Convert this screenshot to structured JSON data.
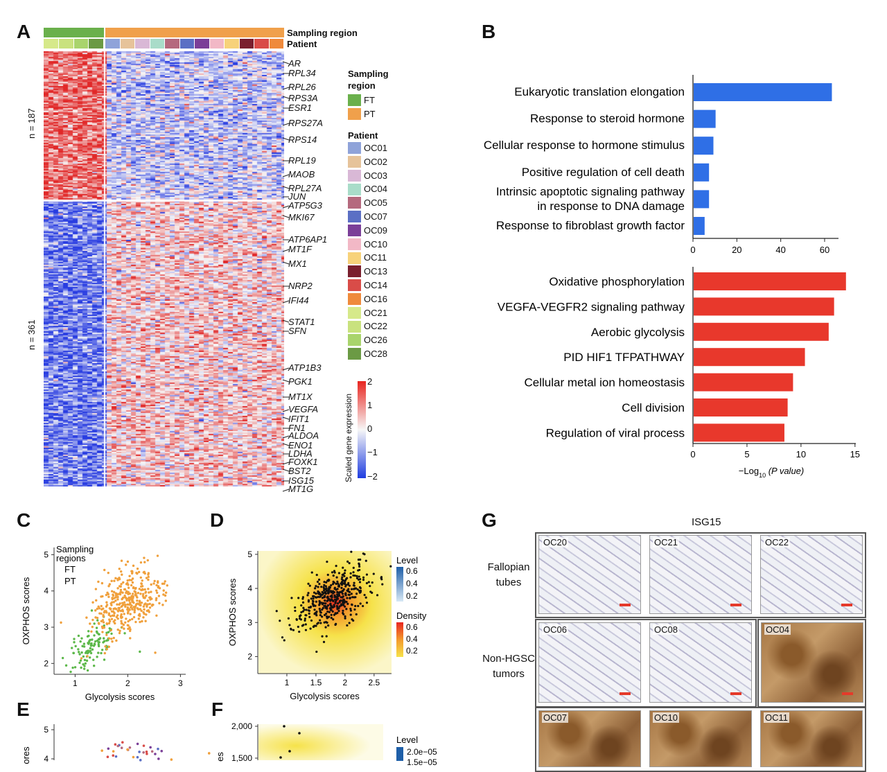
{
  "panels": {
    "A": "A",
    "B": "B",
    "C": "C",
    "D": "D",
    "E": "E",
    "F": "F",
    "G": "G"
  },
  "panelA": {
    "track_sampling": "Sampling region",
    "track_patient": "Patient",
    "n_top": "n = 187",
    "n_bottom": "n = 361",
    "genes_top": [
      "AR",
      "RPL34",
      "RPL26",
      "RPS3A",
      "ESR1",
      "RPS27A",
      "RPS14",
      "RPL19",
      "MAOB",
      "RPL27A",
      "JUN"
    ],
    "genes_bottom": [
      "ATP5G3",
      "MKI67",
      "ATP6AP1",
      "MT1F",
      "MX1",
      "NRP2",
      "IFI44",
      "STAT1",
      "SFN",
      "ATP1B3",
      "PGK1",
      "MT1X",
      "VEGFA",
      "IFIT1",
      "FN1",
      "ALDOA",
      "ENO1",
      "LDHA",
      "FOXK1",
      "BST2",
      "ISG15",
      "MT1G"
    ],
    "legend_sampling_title": "Sampling region",
    "legend_sampling": [
      {
        "label": "FT",
        "color": "#6ab04c"
      },
      {
        "label": "PT",
        "color": "#f0a04b"
      }
    ],
    "legend_patient_title": "Patient",
    "patients": [
      {
        "label": "OC01",
        "color": "#8fa3d9"
      },
      {
        "label": "OC02",
        "color": "#e6c39a"
      },
      {
        "label": "OC03",
        "color": "#d9b8d6"
      },
      {
        "label": "OC04",
        "color": "#a9dcc9"
      },
      {
        "label": "OC05",
        "color": "#b5697e"
      },
      {
        "label": "OC07",
        "color": "#5b6fc4"
      },
      {
        "label": "OC09",
        "color": "#7b3f98"
      },
      {
        "label": "OC10",
        "color": "#f2b8c6"
      },
      {
        "label": "OC11",
        "color": "#f7d27a"
      },
      {
        "label": "OC13",
        "color": "#7a1f2e"
      },
      {
        "label": "OC14",
        "color": "#d94c48"
      },
      {
        "label": "OC16",
        "color": "#ef8a3c"
      },
      {
        "label": "OC21",
        "color": "#d6e98a"
      },
      {
        "label": "OC22",
        "color": "#c9e27e"
      },
      {
        "label": "OC26",
        "color": "#a9d46c"
      },
      {
        "label": "OC28",
        "color": "#6b9a44"
      }
    ],
    "colorbar_title": "Scaled gene expression",
    "colorbar_ticks": [
      "2",
      "1",
      "0",
      "−1",
      "−2"
    ]
  },
  "chart_data": [
    {
      "type": "bar",
      "title": "",
      "categories": [
        "Eukaryotic translation elongation",
        "Response to steroid hormone",
        "Cellular response to hormone stimulus",
        "Positive regulation of cell death",
        "Intrinsic apoptotic signaling pathway in response to DNA damage",
        "Response to fibroblast growth factor"
      ],
      "category_lines": [
        [
          "Eukaryotic translation elongation"
        ],
        [
          "Response to steroid hormone"
        ],
        [
          "Cellular response to hormone stimulus"
        ],
        [
          "Positive regulation of cell death"
        ],
        [
          "Intrinsic apoptotic signaling pathway",
          "in response to DNA damage"
        ],
        [
          "Response to fibroblast growth factor"
        ]
      ],
      "values": [
        63,
        10,
        9,
        7,
        7,
        5
      ],
      "xlim": [
        0,
        65
      ],
      "xticks": [
        "0",
        "20",
        "40",
        "60"
      ],
      "xticks_values": [
        0,
        20,
        40,
        60
      ],
      "color": "#2f6fe6"
    },
    {
      "type": "bar",
      "title": "",
      "categories": [
        "Oxidative phosphorylation",
        "VEGFA-VEGFR2 signaling pathway",
        "Aerobic glycolysis",
        "PID HIF1 TFPATHWAY",
        "Cellular metal ion homeostasis",
        "Cell division",
        "Regulation of viral process"
      ],
      "values": [
        14.1,
        13,
        12.5,
        10.3,
        9.2,
        8.7,
        8.4
      ],
      "xlim": [
        0,
        15
      ],
      "xticks": [
        "0",
        "5",
        "10",
        "15"
      ],
      "xticks_values": [
        0,
        5,
        10,
        15
      ],
      "xlabel_main": "−Log",
      "xlabel_sub": "10",
      "xlabel_rest": " (P value)",
      "color": "#e8382c"
    },
    {
      "type": "scatter",
      "title": "",
      "xlabel": "Glycolysis scores",
      "ylabel": "OXPHOS scores",
      "xlim": [
        0.6,
        3.1
      ],
      "ylim": [
        1.7,
        5.2
      ],
      "xticks": [
        "1",
        "2",
        "3"
      ],
      "yticks": [
        "2",
        "3",
        "4",
        "5"
      ],
      "legend_title": "Sampling\nregions",
      "legend_title_lines": [
        "Sampling",
        "regions"
      ],
      "series": [
        {
          "name": "FT",
          "color": "#5cb84a",
          "center": [
            1.3,
            2.5
          ],
          "spread": [
            0.25,
            0.3
          ],
          "n": 110
        },
        {
          "name": "PT",
          "color": "#f0a03c",
          "center": [
            2.0,
            3.7
          ],
          "spread": [
            0.35,
            0.45
          ],
          "n": 380
        }
      ]
    },
    {
      "type": "scatter",
      "title": "",
      "xlabel": "Glycolysis scores",
      "ylabel": "OXPHOS scores",
      "xlim": [
        0.5,
        2.8
      ],
      "ylim": [
        1.5,
        5.1
      ],
      "xticks": [
        "1",
        "1.5",
        "2",
        "2.5"
      ],
      "yticks": [
        "2",
        "3",
        "4",
        "5"
      ],
      "legend_level_title": "Level",
      "legend_level_ticks": [
        "0.6",
        "0.4",
        "0.2"
      ],
      "legend_density_title": "Density",
      "legend_density_ticks": [
        "0.6",
        "0.4",
        "0.2"
      ]
    }
  ],
  "panelE": {
    "yticks": [
      "5",
      "4"
    ],
    "ylabel": "ores"
  },
  "panelF": {
    "yticks": [
      "2,000",
      "1,500"
    ],
    "ylabel": "es",
    "legend_title": "Level",
    "legend_ticks": [
      "2.0e−05",
      "1.5e−05"
    ]
  },
  "panelG": {
    "title": "ISG15",
    "row1_label": "Fallopian tubes",
    "row1_lines": [
      "Fallopian",
      "tubes"
    ],
    "row2_lines": [
      "Non-HGSC",
      "tumors"
    ],
    "images": [
      {
        "label": "OC20",
        "stain": "light"
      },
      {
        "label": "OC21",
        "stain": "light"
      },
      {
        "label": "OC22",
        "stain": "light"
      },
      {
        "label": "OC06",
        "stain": "light"
      },
      {
        "label": "OC08",
        "stain": "light"
      },
      {
        "label": "OC04",
        "stain": "brown"
      },
      {
        "label": "OC07",
        "stain": "brown"
      },
      {
        "label": "OC10",
        "stain": "brown"
      },
      {
        "label": "OC11",
        "stain": "brown"
      }
    ]
  }
}
